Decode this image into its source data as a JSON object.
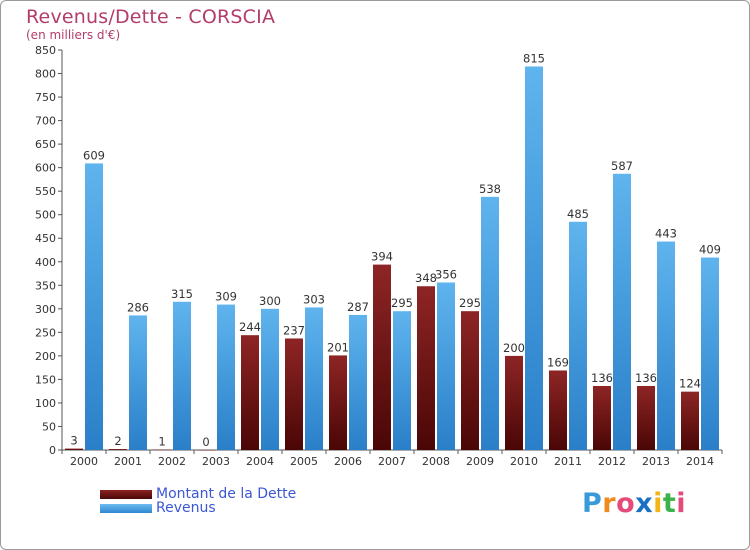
{
  "header": {
    "title": "Revenus/Dette - CORSCIA",
    "subtitle": "(en milliers d'€)"
  },
  "chart_data": {
    "type": "bar",
    "categories": [
      "2000",
      "2001",
      "2002",
      "2003",
      "2004",
      "2005",
      "2006",
      "2007",
      "2008",
      "2009",
      "2010",
      "2011",
      "2012",
      "2013",
      "2014"
    ],
    "series": [
      {
        "name": "Montant de la Dette",
        "values": [
          3,
          2,
          1,
          0,
          244,
          237,
          201,
          394,
          348,
          295,
          200,
          169,
          136,
          136,
          124
        ],
        "color": "#7a1a1a"
      },
      {
        "name": "Revenus",
        "values": [
          609,
          286,
          315,
          309,
          300,
          303,
          287,
          295,
          356,
          538,
          815,
          485,
          587,
          443,
          409
        ],
        "color": "#4da6e8"
      }
    ],
    "ylim": [
      0,
      850
    ],
    "yticks": [
      0,
      50,
      100,
      150,
      200,
      250,
      300,
      350,
      400,
      450,
      500,
      550,
      600,
      650,
      700,
      750,
      800,
      850
    ],
    "grid": false,
    "legend": "bottom-left"
  },
  "legend": {
    "items": [
      {
        "label": "Montant de la Dette"
      },
      {
        "label": "Revenus"
      }
    ]
  },
  "logo": {
    "letters": [
      "P",
      "r",
      "o",
      "x",
      "i",
      "t",
      "i"
    ],
    "colors": [
      "#3a9ad9",
      "#f08a1c",
      "#e64a7a",
      "#1a6fc7",
      "#f2b515",
      "#3bb34a",
      "#e64a7a"
    ]
  }
}
